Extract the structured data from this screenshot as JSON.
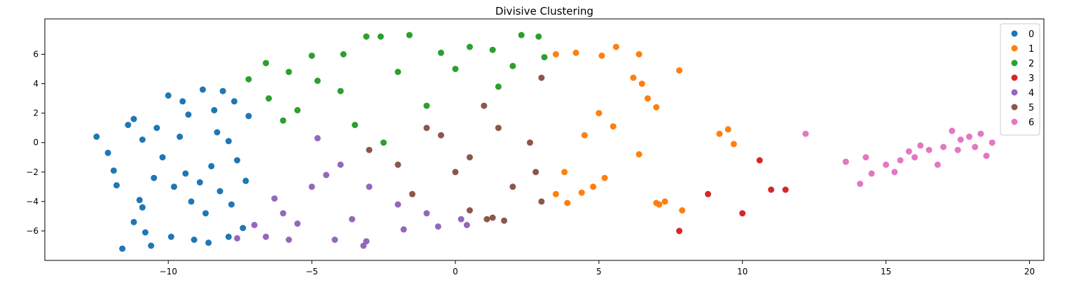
{
  "chart_data": {
    "type": "scatter",
    "title": "Divisive Clustering",
    "xlabel": "",
    "ylabel": "",
    "xlim": [
      -14.3,
      20.5
    ],
    "ylim": [
      -8.0,
      8.4
    ],
    "xticks": [
      -10,
      -5,
      0,
      5,
      10,
      15,
      20
    ],
    "yticks": [
      -6,
      -4,
      -2,
      0,
      2,
      4,
      6
    ],
    "xtick_labels": [
      "−10",
      "−5",
      "0",
      "5",
      "10",
      "15",
      "20"
    ],
    "ytick_labels": [
      "−6",
      "−4",
      "−2",
      "0",
      "2",
      "4",
      "6"
    ],
    "grid": false,
    "legend_position": "top-right",
    "series": [
      {
        "name": "0",
        "color": "#1f77b4",
        "points": [
          [
            -12.5,
            0.4
          ],
          [
            -12.1,
            -0.7
          ],
          [
            -11.9,
            -1.9
          ],
          [
            -11.8,
            -2.9
          ],
          [
            -11.6,
            -7.2
          ],
          [
            -11.2,
            -5.4
          ],
          [
            -11.4,
            1.2
          ],
          [
            -11.2,
            1.6
          ],
          [
            -10.9,
            0.2
          ],
          [
            -11.0,
            -3.9
          ],
          [
            -10.9,
            -4.4
          ],
          [
            -10.8,
            -6.1
          ],
          [
            -10.6,
            -7.0
          ],
          [
            -10.2,
            -1.0
          ],
          [
            -10.0,
            3.2
          ],
          [
            -9.9,
            -6.4
          ],
          [
            -9.5,
            2.8
          ],
          [
            -9.4,
            -2.1
          ],
          [
            -9.2,
            -4.0
          ],
          [
            -9.1,
            -6.6
          ],
          [
            -8.8,
            3.6
          ],
          [
            -8.6,
            -6.8
          ],
          [
            -8.5,
            -1.6
          ],
          [
            -8.3,
            0.7
          ],
          [
            -8.1,
            3.5
          ],
          [
            -7.9,
            -6.4
          ],
          [
            -7.7,
            2.8
          ],
          [
            -7.6,
            -1.2
          ],
          [
            -7.4,
            -5.8
          ],
          [
            -7.2,
            1.8
          ],
          [
            -10.5,
            -2.4
          ],
          [
            -10.4,
            1.0
          ],
          [
            -9.8,
            -3.0
          ],
          [
            -9.6,
            0.4
          ],
          [
            -9.3,
            1.9
          ],
          [
            -8.9,
            -2.7
          ],
          [
            -8.7,
            -4.8
          ],
          [
            -8.4,
            2.2
          ],
          [
            -8.2,
            -3.3
          ],
          [
            -7.9,
            0.1
          ],
          [
            -7.8,
            -4.2
          ],
          [
            -7.3,
            -2.6
          ]
        ]
      },
      {
        "name": "1",
        "color": "#ff7f0e",
        "points": [
          [
            3.5,
            6.0
          ],
          [
            4.2,
            6.1
          ],
          [
            5.1,
            5.9
          ],
          [
            5.6,
            6.5
          ],
          [
            6.4,
            6.0
          ],
          [
            6.2,
            4.4
          ],
          [
            6.5,
            4.0
          ],
          [
            6.7,
            3.0
          ],
          [
            7.0,
            2.4
          ],
          [
            7.8,
            4.9
          ],
          [
            5.5,
            1.1
          ],
          [
            6.4,
            -0.8
          ],
          [
            5.2,
            -2.4
          ],
          [
            4.8,
            -3.0
          ],
          [
            4.4,
            -3.4
          ],
          [
            3.9,
            -4.1
          ],
          [
            3.5,
            -3.5
          ],
          [
            4.5,
            0.5
          ],
          [
            5.0,
            2.0
          ],
          [
            3.8,
            -2.0
          ],
          [
            7.0,
            -4.1
          ],
          [
            7.1,
            -4.2
          ],
          [
            7.3,
            -4.0
          ],
          [
            7.9,
            -4.6
          ],
          [
            9.2,
            0.6
          ],
          [
            9.5,
            0.9
          ],
          [
            9.7,
            -0.1
          ]
        ]
      },
      {
        "name": "2",
        "color": "#2ca02c",
        "points": [
          [
            -7.2,
            4.3
          ],
          [
            -6.6,
            5.4
          ],
          [
            -5.8,
            4.8
          ],
          [
            -5.0,
            5.9
          ],
          [
            -4.8,
            4.2
          ],
          [
            -3.9,
            6.0
          ],
          [
            -3.1,
            7.2
          ],
          [
            -2.6,
            7.2
          ],
          [
            -1.6,
            7.3
          ],
          [
            -0.5,
            6.1
          ],
          [
            0.5,
            6.5
          ],
          [
            1.3,
            6.3
          ],
          [
            2.3,
            7.3
          ],
          [
            2.9,
            7.2
          ],
          [
            3.1,
            5.8
          ],
          [
            -6.5,
            3.0
          ],
          [
            -5.5,
            2.2
          ],
          [
            -4.0,
            3.5
          ],
          [
            -2.0,
            4.8
          ],
          [
            0.0,
            5.0
          ],
          [
            2.0,
            5.2
          ],
          [
            -3.5,
            1.2
          ],
          [
            -1.0,
            2.5
          ],
          [
            1.5,
            3.8
          ],
          [
            -6.0,
            1.5
          ],
          [
            -2.5,
            0.0
          ]
        ]
      },
      {
        "name": "3",
        "color": "#d62728",
        "points": [
          [
            7.8,
            -6.0
          ],
          [
            8.8,
            -3.5
          ],
          [
            10.0,
            -4.8
          ],
          [
            10.6,
            -1.2
          ],
          [
            11.0,
            -3.2
          ],
          [
            11.5,
            -3.2
          ]
        ]
      },
      {
        "name": "4",
        "color": "#9467bd",
        "points": [
          [
            -7.6,
            -6.5
          ],
          [
            -6.6,
            -6.4
          ],
          [
            -5.8,
            -6.6
          ],
          [
            -4.2,
            -6.6
          ],
          [
            -3.2,
            -7.0
          ],
          [
            -3.1,
            -6.7
          ],
          [
            -1.8,
            -5.9
          ],
          [
            -0.6,
            -5.7
          ],
          [
            0.4,
            -5.6
          ],
          [
            -7.0,
            -5.6
          ],
          [
            -6.0,
            -4.8
          ],
          [
            -5.0,
            -3.0
          ],
          [
            -4.8,
            0.3
          ],
          [
            -4.0,
            -1.5
          ],
          [
            -3.0,
            -3.0
          ],
          [
            -2.0,
            -4.2
          ],
          [
            -1.0,
            -4.8
          ],
          [
            0.2,
            -5.2
          ],
          [
            -5.5,
            -5.5
          ],
          [
            -3.6,
            -5.2
          ],
          [
            -6.3,
            -3.8
          ],
          [
            -4.5,
            -2.2
          ]
        ]
      },
      {
        "name": "5",
        "color": "#8c564b",
        "points": [
          [
            -3.0,
            -0.5
          ],
          [
            -1.0,
            1.0
          ],
          [
            1.0,
            2.5
          ],
          [
            3.0,
            4.4
          ],
          [
            -2.0,
            -1.5
          ],
          [
            0.0,
            -2.0
          ],
          [
            2.0,
            -3.0
          ],
          [
            3.0,
            -4.0
          ],
          [
            0.5,
            -4.6
          ],
          [
            1.1,
            -5.2
          ],
          [
            1.3,
            -5.1
          ],
          [
            1.7,
            -5.3
          ],
          [
            -0.5,
            0.5
          ],
          [
            1.5,
            1.0
          ],
          [
            2.6,
            0.0
          ],
          [
            2.8,
            -2.0
          ],
          [
            0.5,
            -1.0
          ],
          [
            -1.5,
            -3.5
          ]
        ]
      },
      {
        "name": "6",
        "color": "#e377c2",
        "points": [
          [
            12.2,
            0.6
          ],
          [
            13.6,
            -1.3
          ],
          [
            14.1,
            -2.8
          ],
          [
            14.3,
            -1.0
          ],
          [
            14.5,
            -2.1
          ],
          [
            15.0,
            -1.5
          ],
          [
            15.5,
            -1.2
          ],
          [
            16.0,
            -1.0
          ],
          [
            16.5,
            -0.5
          ],
          [
            17.0,
            -0.3
          ],
          [
            17.3,
            0.8
          ],
          [
            17.5,
            -0.5
          ],
          [
            17.9,
            0.4
          ],
          [
            18.3,
            0.6
          ],
          [
            18.5,
            -0.9
          ],
          [
            18.7,
            0.0
          ],
          [
            15.3,
            -2.0
          ],
          [
            16.2,
            -0.2
          ],
          [
            16.8,
            -1.5
          ],
          [
            17.6,
            0.2
          ],
          [
            18.1,
            -0.3
          ],
          [
            15.8,
            -0.6
          ]
        ]
      }
    ]
  }
}
